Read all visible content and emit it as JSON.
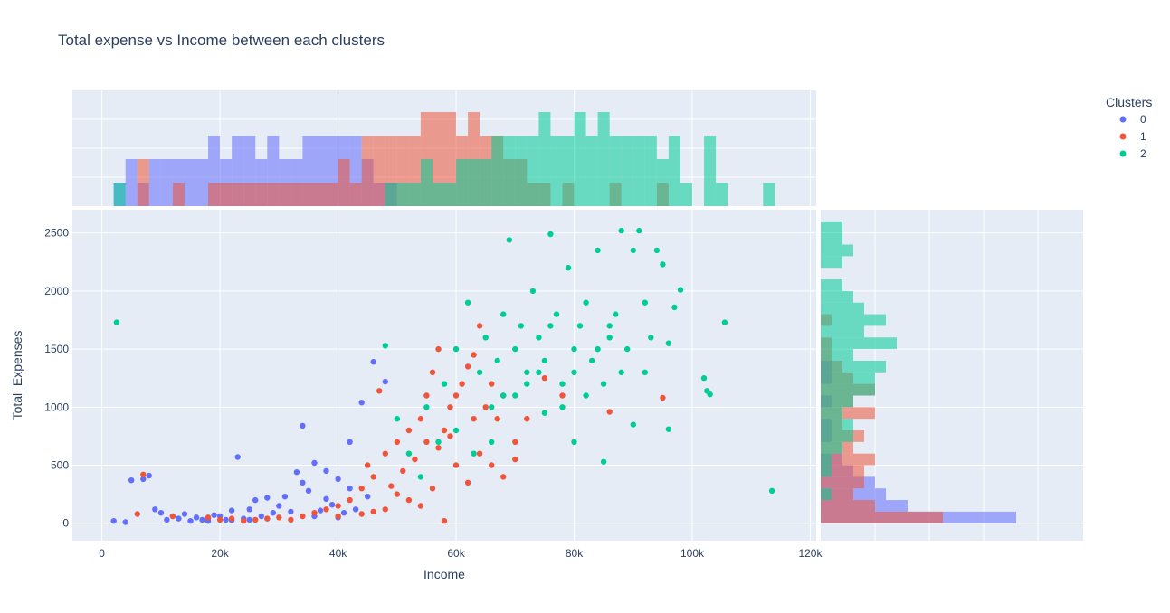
{
  "chart_data": {
    "type": "scatter",
    "title": "Total expense vs Income between each clusters",
    "xlabel": "Income",
    "ylabel": "Total_Expenses",
    "xlim": [
      -5000,
      121000
    ],
    "ylim": [
      -150,
      2700
    ],
    "x_ticks": [
      0,
      20000,
      40000,
      60000,
      80000,
      100000,
      120000
    ],
    "x_tick_labels": [
      "0",
      "20k",
      "40k",
      "60k",
      "80k",
      "100k",
      "120k"
    ],
    "y_ticks": [
      0,
      500,
      1000,
      1500,
      2000,
      2500
    ],
    "y_tick_labels": [
      "0",
      "500",
      "1000",
      "1500",
      "2000",
      "2500"
    ],
    "grid": true,
    "legend": {
      "title": "Clusters",
      "placement": "top-right"
    },
    "marginals": {
      "top": "histogram of Income",
      "right": "histogram of Total_Expenses"
    },
    "series": [
      {
        "name": "0",
        "color": "#636efa",
        "points": [
          [
            2000,
            20
          ],
          [
            4000,
            10
          ],
          [
            5000,
            370
          ],
          [
            7000,
            380
          ],
          [
            8000,
            410
          ],
          [
            9000,
            120
          ],
          [
            10000,
            90
          ],
          [
            12000,
            60
          ],
          [
            14000,
            80
          ],
          [
            16000,
            50
          ],
          [
            18000,
            40
          ],
          [
            20000,
            60
          ],
          [
            22000,
            110
          ],
          [
            23000,
            570
          ],
          [
            25000,
            120
          ],
          [
            26000,
            200
          ],
          [
            28000,
            220
          ],
          [
            29000,
            90
          ],
          [
            31000,
            230
          ],
          [
            33000,
            440
          ],
          [
            34000,
            840
          ],
          [
            36000,
            520
          ],
          [
            38000,
            210
          ],
          [
            40000,
            380
          ],
          [
            42000,
            300
          ],
          [
            44000,
            1040
          ],
          [
            46000,
            1390
          ],
          [
            48000,
            1220
          ],
          [
            35000,
            280
          ],
          [
            30000,
            150
          ],
          [
            27000,
            60
          ],
          [
            24000,
            40
          ],
          [
            21000,
            30
          ],
          [
            19000,
            70
          ],
          [
            17000,
            30
          ],
          [
            15000,
            20
          ],
          [
            13000,
            40
          ],
          [
            11000,
            30
          ],
          [
            37000,
            110
          ],
          [
            39000,
            160
          ],
          [
            41000,
            90
          ],
          [
            43000,
            120
          ],
          [
            45000,
            230
          ],
          [
            32000,
            100
          ],
          [
            25000,
            30
          ],
          [
            28000,
            40
          ],
          [
            22000,
            25
          ],
          [
            18000,
            20
          ],
          [
            36000,
            60
          ],
          [
            40000,
            50
          ],
          [
            42000,
            700
          ],
          [
            38000,
            450
          ],
          [
            34000,
            350
          ]
        ]
      },
      {
        "name": "1",
        "color": "#ef553b",
        "points": [
          [
            6000,
            80
          ],
          [
            7000,
            420
          ],
          [
            12000,
            60
          ],
          [
            18000,
            50
          ],
          [
            22000,
            40
          ],
          [
            26000,
            30
          ],
          [
            30000,
            50
          ],
          [
            34000,
            60
          ],
          [
            36000,
            90
          ],
          [
            38000,
            120
          ],
          [
            40000,
            150
          ],
          [
            42000,
            200
          ],
          [
            44000,
            300
          ],
          [
            46000,
            400
          ],
          [
            47000,
            1140
          ],
          [
            48000,
            600
          ],
          [
            50000,
            700
          ],
          [
            52000,
            800
          ],
          [
            54000,
            900
          ],
          [
            55000,
            1100
          ],
          [
            56000,
            1300
          ],
          [
            57000,
            1500
          ],
          [
            58000,
            800
          ],
          [
            59000,
            1000
          ],
          [
            60000,
            1100
          ],
          [
            61000,
            1200
          ],
          [
            62000,
            1350
          ],
          [
            63000,
            1450
          ],
          [
            64000,
            1700
          ],
          [
            65000,
            1000
          ],
          [
            66000,
            1200
          ],
          [
            67000,
            900
          ],
          [
            68000,
            1100
          ],
          [
            70000,
            700
          ],
          [
            72000,
            900
          ],
          [
            75000,
            1250
          ],
          [
            78000,
            1100
          ],
          [
            86000,
            960
          ],
          [
            95000,
            1080
          ],
          [
            20000,
            30
          ],
          [
            24000,
            20
          ],
          [
            28000,
            40
          ],
          [
            32000,
            30
          ],
          [
            40000,
            60
          ],
          [
            44000,
            80
          ],
          [
            48000,
            120
          ],
          [
            52000,
            200
          ],
          [
            56000,
            300
          ],
          [
            60000,
            500
          ],
          [
            64000,
            600
          ],
          [
            68000,
            400
          ],
          [
            58000,
            20
          ],
          [
            54000,
            150
          ],
          [
            50000,
            250
          ],
          [
            46000,
            100
          ],
          [
            62000,
            350
          ],
          [
            66000,
            500
          ],
          [
            70000,
            550
          ],
          [
            53000,
            550
          ],
          [
            57000,
            650
          ],
          [
            45000,
            500
          ],
          [
            49000,
            320
          ],
          [
            51000,
            450
          ],
          [
            55000,
            700
          ],
          [
            59000,
            750
          ],
          [
            63000,
            900
          ]
        ]
      },
      {
        "name": "2",
        "color": "#00cc96",
        "points": [
          [
            2500,
            1730
          ],
          [
            48000,
            1530
          ],
          [
            50000,
            900
          ],
          [
            55000,
            1000
          ],
          [
            58000,
            1200
          ],
          [
            60000,
            1500
          ],
          [
            62000,
            1900
          ],
          [
            64000,
            1300
          ],
          [
            65000,
            1600
          ],
          [
            66000,
            1000
          ],
          [
            67000,
            1400
          ],
          [
            68000,
            1800
          ],
          [
            69000,
            2440
          ],
          [
            70000,
            1500
          ],
          [
            71000,
            1700
          ],
          [
            72000,
            1300
          ],
          [
            73000,
            2000
          ],
          [
            74000,
            1600
          ],
          [
            75000,
            1400
          ],
          [
            76000,
            2490
          ],
          [
            77000,
            1800
          ],
          [
            78000,
            1200
          ],
          [
            79000,
            2200
          ],
          [
            80000,
            1500
          ],
          [
            81000,
            1700
          ],
          [
            82000,
            1900
          ],
          [
            83000,
            1400
          ],
          [
            84000,
            2350
          ],
          [
            85000,
            1200
          ],
          [
            86000,
            1600
          ],
          [
            87000,
            1800
          ],
          [
            88000,
            2520
          ],
          [
            89000,
            1500
          ],
          [
            90000,
            2350
          ],
          [
            91000,
            2520
          ],
          [
            92000,
            1900
          ],
          [
            93000,
            1600
          ],
          [
            94000,
            2350
          ],
          [
            95000,
            2230
          ],
          [
            96000,
            1550
          ],
          [
            97000,
            1860
          ],
          [
            98000,
            2010
          ],
          [
            105500,
            1730
          ],
          [
            102000,
            1250
          ],
          [
            102500,
            1140
          ],
          [
            103000,
            1110
          ],
          [
            113500,
            280
          ],
          [
            96000,
            810
          ],
          [
            85000,
            530
          ],
          [
            80000,
            700
          ],
          [
            75000,
            950
          ],
          [
            70000,
            1100
          ],
          [
            66000,
            700
          ],
          [
            63000,
            600
          ],
          [
            60000,
            800
          ],
          [
            57000,
            700
          ],
          [
            54000,
            400
          ],
          [
            52000,
            600
          ],
          [
            78000,
            1000
          ],
          [
            82000,
            1100
          ],
          [
            88000,
            1300
          ],
          [
            90000,
            850
          ],
          [
            92000,
            1300
          ],
          [
            86000,
            1700
          ],
          [
            84000,
            1500
          ],
          [
            76000,
            1700
          ],
          [
            72000,
            1200
          ],
          [
            68000,
            1100
          ],
          [
            74000,
            1300
          ],
          [
            80000,
            1300
          ]
        ]
      }
    ]
  }
}
